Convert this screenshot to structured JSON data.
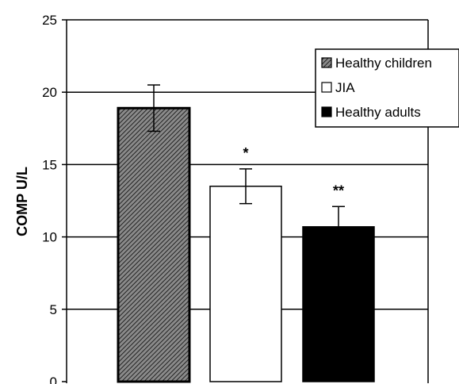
{
  "chart_data": {
    "type": "bar",
    "ylabel": "COMP U/L",
    "ylim": [
      0,
      25
    ],
    "yticks": [
      0,
      5,
      10,
      15,
      20,
      25
    ],
    "grid": true,
    "legend_position": "top-right",
    "series": [
      {
        "name": "Healthy children",
        "value": 18.9,
        "error": 1.6,
        "annotation": "",
        "fill": "hatched",
        "color": "#000000"
      },
      {
        "name": "JIA",
        "value": 13.5,
        "error": 1.2,
        "annotation": "*",
        "fill": "white",
        "color": "#ffffff"
      },
      {
        "name": "Healthy adults",
        "value": 10.7,
        "error": 1.4,
        "annotation": "**",
        "fill": "black",
        "color": "#000000"
      }
    ]
  }
}
